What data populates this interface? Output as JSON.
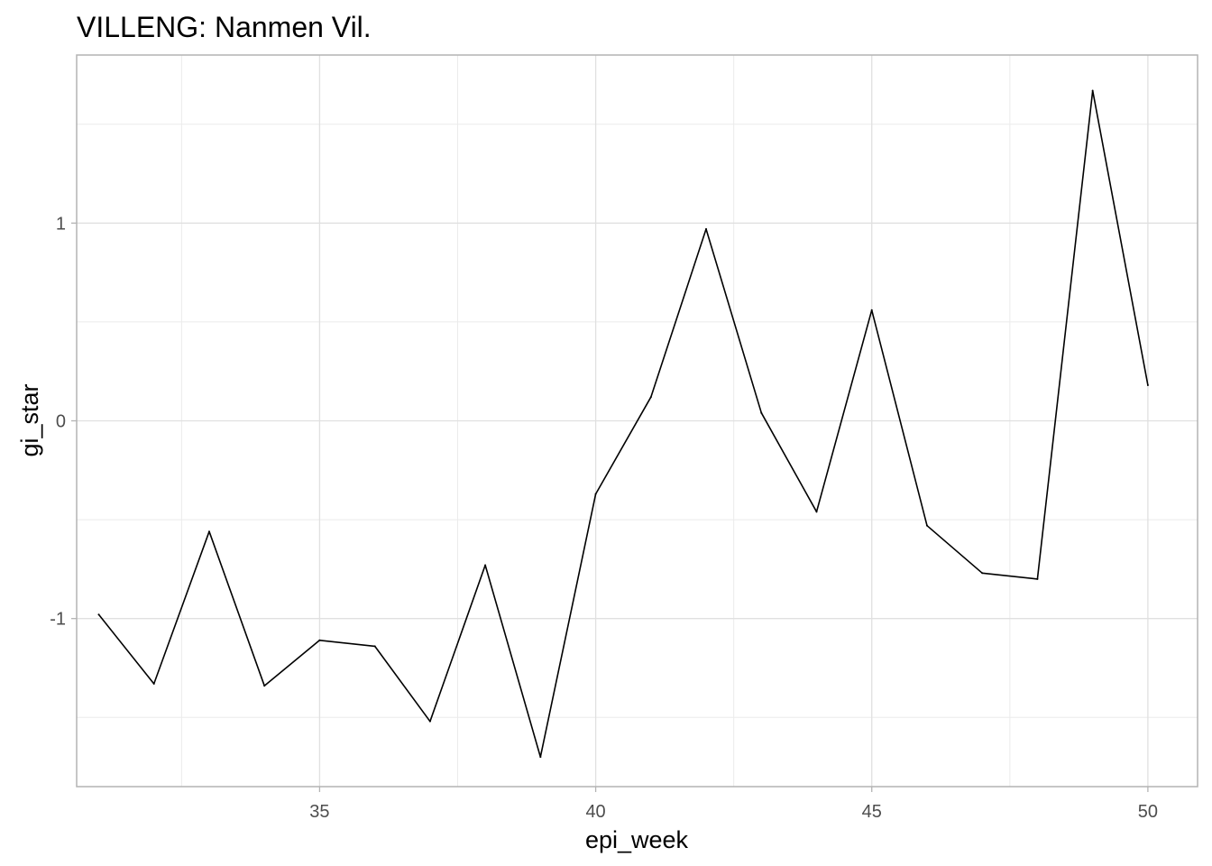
{
  "chart_data": {
    "type": "line",
    "title": "VILLENG: Nanmen Vil.",
    "xlabel": "epi_week",
    "ylabel": "gi_star",
    "x_ticks": [
      35,
      40,
      45,
      50
    ],
    "y_ticks": [
      -1,
      0,
      1
    ],
    "xlim": [
      30.6,
      50.9
    ],
    "ylim": [
      -1.85,
      1.85
    ],
    "grid": true,
    "line_color": "#000000",
    "grid_color": "#e0e0e0",
    "series": [
      {
        "x": [
          31,
          32,
          33,
          34,
          35,
          36,
          37,
          38,
          39,
          40,
          41,
          42,
          43,
          44,
          45,
          46,
          47,
          48,
          49,
          50
        ],
        "values": [
          -0.98,
          -1.33,
          -0.56,
          -1.34,
          -1.11,
          -1.14,
          -1.52,
          -0.73,
          -1.7,
          -0.37,
          0.12,
          0.97,
          0.04,
          -0.46,
          0.56,
          -0.53,
          -0.77,
          -0.8,
          1.67,
          0.18
        ]
      }
    ]
  }
}
